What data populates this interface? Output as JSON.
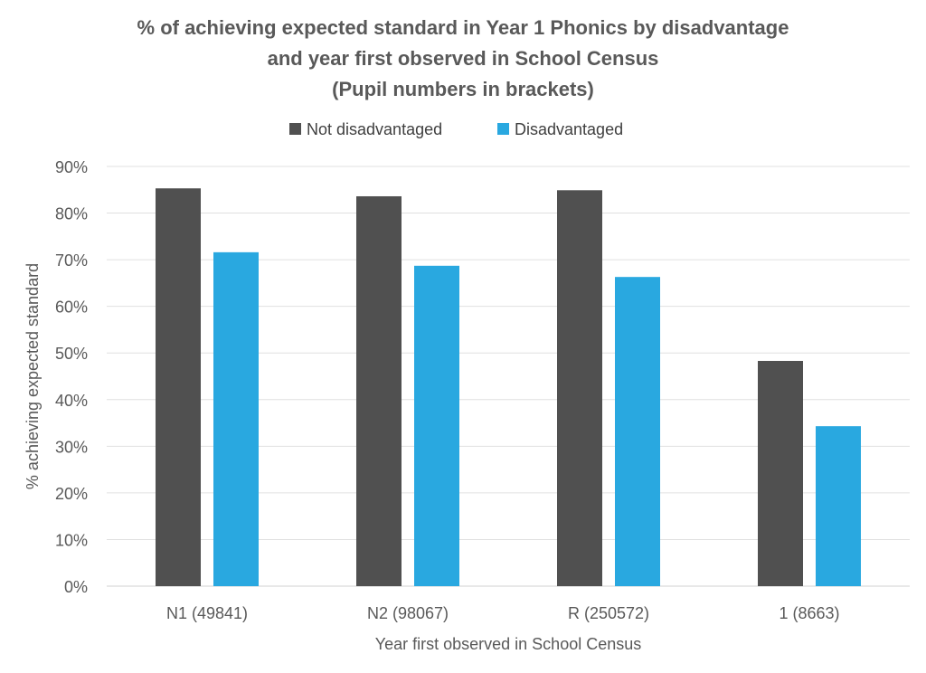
{
  "chart_data": {
    "type": "bar",
    "title": [
      "% of achieving expected standard in Year 1 Phonics by disadvantage",
      "and year first observed in School Census",
      "(Pupil numbers in brackets)"
    ],
    "xlabel": "Year first observed in School Census",
    "ylabel": "% achieving expected standard",
    "categories": [
      "N1 (49841)",
      "N2 (98067)",
      "R (250572)",
      "1 (8663)"
    ],
    "series": [
      {
        "name": "Not disadvantaged",
        "color": "#505050",
        "values": [
          85.3,
          83.6,
          84.9,
          48.3
        ]
      },
      {
        "name": "Disadvantaged",
        "color": "#29a8e0",
        "values": [
          71.6,
          68.7,
          66.3,
          34.3
        ]
      }
    ],
    "ylim": [
      0,
      90
    ],
    "yticks": [
      0,
      10,
      20,
      30,
      40,
      50,
      60,
      70,
      80,
      90
    ],
    "ytick_labels": [
      "0%",
      "10%",
      "20%",
      "30%",
      "40%",
      "50%",
      "60%",
      "70%",
      "80%",
      "90%"
    ],
    "grid": true,
    "legend_position": "top-center"
  }
}
